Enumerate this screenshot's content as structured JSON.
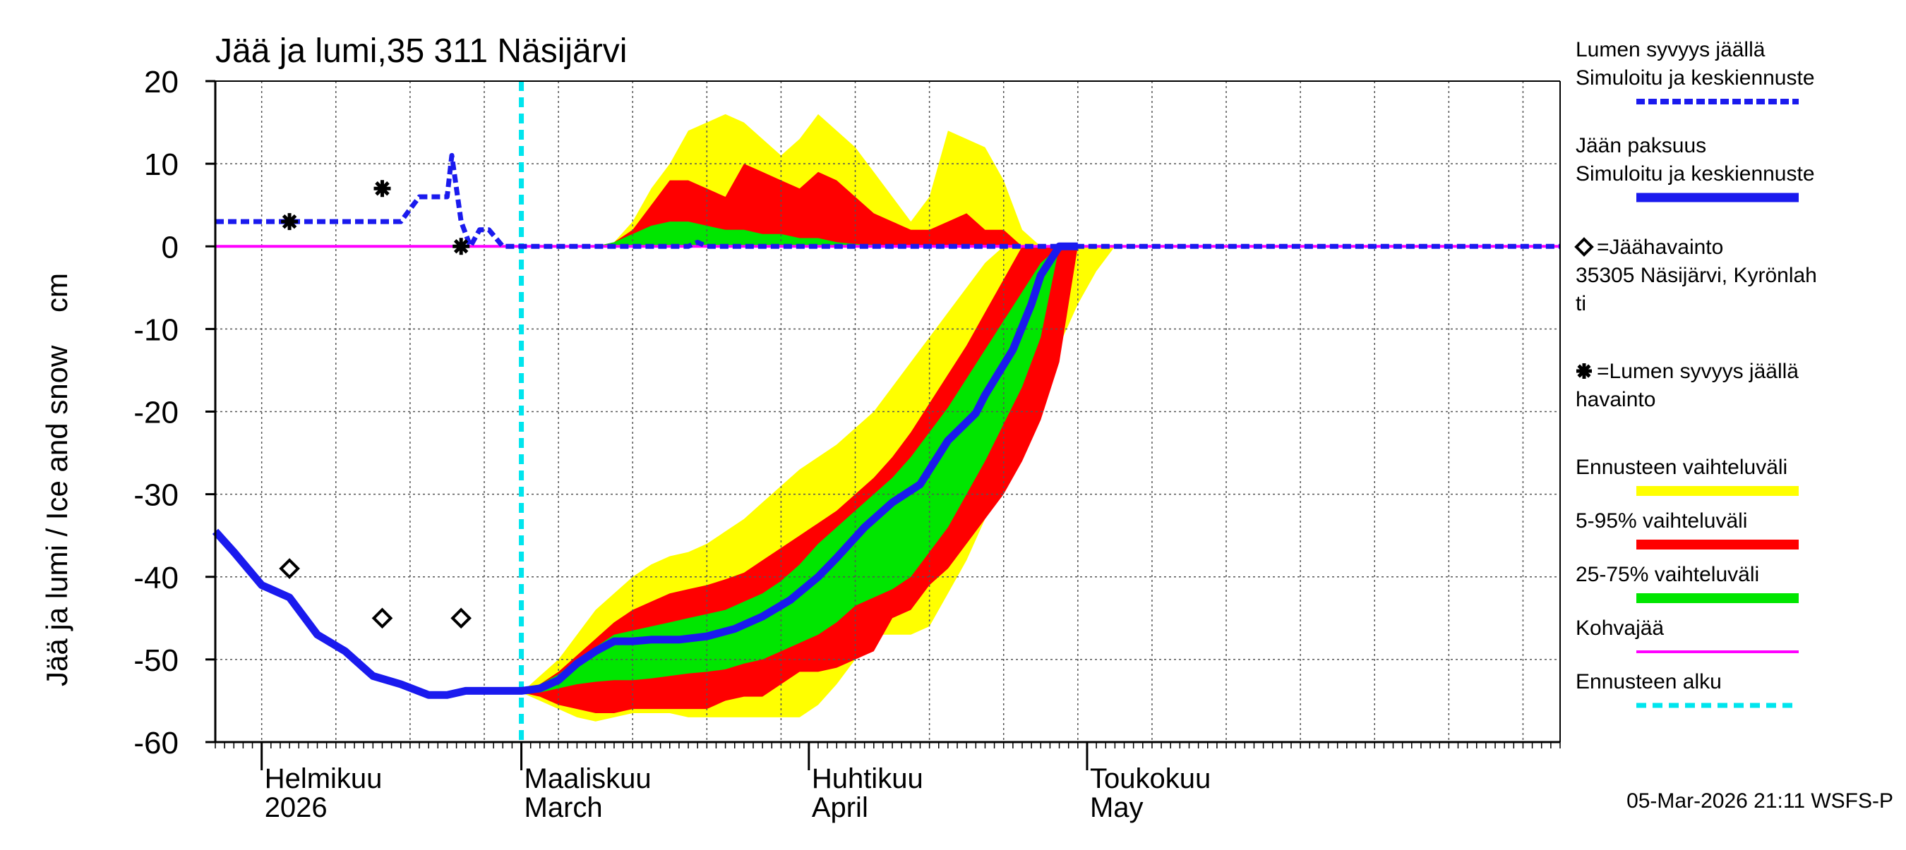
{
  "chart_data": {
    "type": "area",
    "title": "Jää ja lumi,35 311 Näsijärvi",
    "ylabel": "Jää ja lumi / Ice and snow    cm",
    "ylim": [
      -60,
      20
    ],
    "yticks": [
      20,
      10,
      0,
      -10,
      -20,
      -30,
      -40,
      -50,
      -60
    ],
    "xlim_days": [
      -33,
      112
    ],
    "x_unit": "days since 2026-03-01",
    "grid": true,
    "months": [
      {
        "day": -28,
        "fi": "Helmikuu",
        "en": "2026"
      },
      {
        "day": 0,
        "fi": "Maaliskuu",
        "en": "March"
      },
      {
        "day": 31,
        "fi": "Huhtikuu",
        "en": "April"
      },
      {
        "day": 61,
        "fi": "Toukokuu",
        "en": "May"
      }
    ],
    "forecast_start_day": 0,
    "colors": {
      "snow": "#1a1aee",
      "ice": "#1a1aee",
      "full_range": "#ffff00",
      "p5_95": "#ff0000",
      "p25_75": "#00e600",
      "slush": "#ff00ff",
      "forecast_start": "#00e5ee"
    },
    "snow_depth": {
      "x": [
        -33,
        -30,
        -25,
        -20,
        -15,
        -13,
        -11,
        -9,
        -8,
        -7.5,
        -6.5,
        -5.5,
        -4.5,
        -3.5,
        -2,
        0,
        5,
        10,
        14,
        18,
        19,
        20,
        22,
        26,
        30,
        35,
        40,
        50,
        60,
        70,
        80,
        90,
        100,
        112
      ],
      "values": [
        3,
        3,
        3,
        3,
        3,
        3,
        6,
        6,
        6,
        11,
        3,
        0,
        2,
        2,
        0,
        0,
        0,
        0,
        0,
        0,
        0.5,
        0,
        0,
        0,
        0,
        0,
        0,
        0,
        0,
        0,
        0,
        0,
        0,
        0
      ]
    },
    "ice_thickness": {
      "x": [
        -33,
        -31,
        -28,
        -25,
        -22,
        -19,
        -16,
        -13,
        -10,
        -8,
        -6,
        -4,
        -2,
        0,
        2,
        4,
        6,
        8,
        10,
        12,
        14,
        17,
        20,
        23,
        26,
        29,
        32,
        34,
        37,
        40,
        43,
        46,
        49,
        50,
        53,
        55,
        56,
        58,
        60
      ],
      "values": [
        -34.5,
        -37,
        -41,
        -42.5,
        -47,
        -49,
        -52,
        -53,
        -54.3,
        -54.3,
        -53.8,
        -53.8,
        -53.8,
        -53.8,
        -53.5,
        -52.5,
        -50.5,
        -49,
        -47.8,
        -47.8,
        -47.6,
        -47.6,
        -47.2,
        -46.3,
        -44.8,
        -42.8,
        -40,
        -37.7,
        -34,
        -31,
        -28.8,
        -23.5,
        -20.2,
        -18,
        -12.5,
        -7,
        -3.5,
        0,
        0
      ]
    },
    "band_full_range": {
      "x": [
        0,
        2,
        4,
        6,
        8,
        10,
        12,
        14,
        16,
        18,
        20,
        22,
        24,
        26,
        28,
        30,
        32,
        34,
        36,
        38,
        40,
        42,
        44,
        46,
        48,
        50,
        52,
        54,
        56,
        58,
        60,
        62,
        64
      ],
      "upper": [
        -54,
        -52,
        -50,
        -47,
        -44,
        -42,
        -40,
        -38.5,
        -37.5,
        -37,
        -36,
        -34.5,
        -33,
        -31,
        -29,
        -27,
        -25.5,
        -24,
        -22,
        -20,
        -17,
        -14,
        -11,
        -8,
        -5,
        -2,
        0,
        0,
        0,
        0,
        0,
        0,
        0
      ],
      "lower": [
        -54,
        -55,
        -56,
        -57,
        -57.5,
        -57,
        -56.5,
        -56.5,
        -56.5,
        -57,
        -57,
        -57,
        -57,
        -57,
        -57,
        -57,
        -55.5,
        -53,
        -50,
        -47,
        -47,
        -47,
        -46,
        -42,
        -38,
        -33,
        -28,
        -23,
        -17,
        -12,
        -7,
        -3,
        0
      ]
    },
    "band_p5_95": {
      "x": [
        0,
        2,
        4,
        6,
        8,
        10,
        12,
        14,
        16,
        18,
        20,
        22,
        24,
        26,
        28,
        30,
        32,
        34,
        36,
        38,
        40,
        42,
        44,
        46,
        48,
        50,
        52,
        54,
        56,
        58,
        60
      ],
      "upper": [
        -54,
        -53,
        -51.5,
        -49.5,
        -47.5,
        -45.5,
        -44,
        -43,
        -42,
        -41.5,
        -41,
        -40.3,
        -39.5,
        -38,
        -36.5,
        -35,
        -33.5,
        -32,
        -30,
        -28,
        -25.5,
        -22.5,
        -19,
        -15.5,
        -12,
        -8,
        -4,
        0,
        0,
        0,
        0
      ],
      "lower": [
        -54,
        -54.5,
        -55.5,
        -56,
        -56.5,
        -56.5,
        -56,
        -56,
        -56,
        -56,
        -56,
        -55,
        -54.5,
        -54.5,
        -53,
        -51.5,
        -51.5,
        -51,
        -50,
        -49,
        -45,
        -44,
        -41,
        -39,
        -36,
        -33,
        -30,
        -26,
        -21,
        -14,
        0
      ]
    },
    "band_p25_75": {
      "x": [
        0,
        2,
        4,
        6,
        8,
        10,
        12,
        14,
        16,
        18,
        20,
        22,
        24,
        26,
        28,
        30,
        32,
        34,
        36,
        38,
        40,
        42,
        44,
        46,
        48,
        50,
        52,
        54,
        56,
        58
      ],
      "upper": [
        -54,
        -53,
        -51.8,
        -50,
        -48.5,
        -47,
        -46.5,
        -46,
        -45.5,
        -45,
        -44.5,
        -44,
        -43,
        -42,
        -40.5,
        -38.5,
        -36,
        -34,
        -32,
        -30,
        -28,
        -25.5,
        -22.5,
        -19.5,
        -16,
        -12.5,
        -9,
        -5.5,
        -2,
        0
      ],
      "lower": [
        -54,
        -54,
        -53.5,
        -53,
        -52.7,
        -52.5,
        -52.5,
        -52.3,
        -52,
        -51.7,
        -51.5,
        -51.2,
        -50.5,
        -50,
        -49,
        -48,
        -47,
        -45.5,
        -43.5,
        -42.5,
        -41.5,
        -40,
        -37,
        -34,
        -30,
        -26,
        -21.5,
        -17,
        -11,
        0
      ]
    },
    "snow_band_full_range": {
      "x": [
        0,
        4,
        8,
        10,
        12,
        14,
        16,
        18,
        20,
        22,
        24,
        26,
        28,
        30,
        32,
        34,
        36,
        38,
        40,
        42,
        44,
        46,
        48,
        50,
        52,
        54,
        56
      ],
      "upper": [
        0,
        0,
        0,
        0.5,
        3,
        7,
        10,
        14,
        15,
        16,
        15,
        13,
        11,
        13,
        16,
        14,
        12,
        9,
        6,
        3,
        6,
        14,
        13,
        12,
        8,
        2,
        0
      ]
    },
    "snow_band_p5_95": {
      "x": [
        0,
        8,
        10,
        12,
        14,
        16,
        18,
        20,
        22,
        24,
        26,
        28,
        30,
        32,
        34,
        36,
        38,
        40,
        42,
        44,
        46,
        48,
        50,
        52,
        54
      ],
      "upper": [
        0,
        0,
        0.5,
        2,
        5,
        8,
        8,
        7,
        6,
        10,
        9,
        8,
        7,
        9,
        8,
        6,
        4,
        3,
        2,
        2,
        3,
        4,
        2,
        2,
        0
      ]
    },
    "snow_band_p25_75": {
      "x": [
        0,
        8,
        10,
        12,
        14,
        16,
        18,
        20,
        22,
        24,
        26,
        28,
        30,
        32,
        34,
        36,
        38,
        40,
        42
      ],
      "upper": [
        0,
        0,
        0.5,
        1.5,
        2.5,
        3,
        3,
        2.5,
        2,
        2,
        1.5,
        1.5,
        1,
        1,
        0.5,
        0.3,
        0.2,
        0,
        0
      ]
    },
    "ice_observations": {
      "x": [
        -25,
        -15,
        -6.5
      ],
      "values": [
        -39,
        -45,
        -45
      ]
    },
    "snow_observations": {
      "x": [
        -25,
        -15,
        -6.5
      ],
      "values": [
        3,
        7,
        0
      ]
    },
    "legend": [
      {
        "line1": "Lumen syvyys jäällä",
        "line2": "Simuloitu ja keskiennuste",
        "style": "snow"
      },
      {
        "line1": "Jään paksuus",
        "line2": "Simuloitu ja keskiennuste",
        "style": "ice"
      },
      {
        "line1": "=Jäähavainto",
        "line2": "35305 Näsijärvi, Kyrönlah",
        "line3": "ti",
        "style": "diamond"
      },
      {
        "line1": "=Lumen syvyys jäällä",
        "line2": "havainto",
        "style": "star"
      },
      {
        "line1": "Ennusteen vaihteluväli",
        "style": "full_range"
      },
      {
        "line1": "5-95% vaihteluväli",
        "style": "p5_95"
      },
      {
        "line1": "25-75% vaihteluväli",
        "style": "p25_75"
      },
      {
        "line1": "Kohvajää",
        "style": "slush"
      },
      {
        "line1": "Ennusteen alku",
        "style": "forecast_start"
      }
    ],
    "footer": "05-Mar-2026 21:11 WSFS-P"
  }
}
